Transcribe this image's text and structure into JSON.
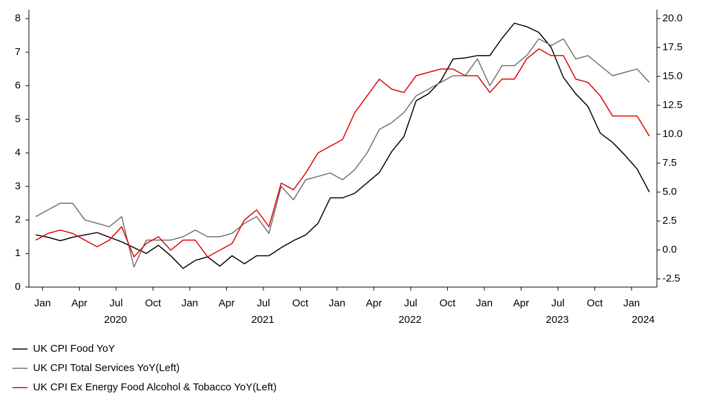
{
  "chart_data": {
    "type": "line",
    "categories": [
      null,
      "Jan",
      null,
      null,
      "Apr",
      null,
      null,
      "Jul",
      null,
      null,
      "Oct",
      null,
      null,
      "Jan",
      null,
      null,
      "Apr",
      null,
      null,
      "Jul",
      null,
      null,
      "Oct",
      null,
      null,
      "Jan",
      null,
      null,
      "Apr",
      null,
      null,
      "Jul",
      null,
      null,
      "Oct",
      null,
      null,
      "Jan",
      null,
      null,
      "Apr",
      null,
      null,
      "Jul",
      null,
      null,
      "Oct",
      null,
      null,
      "Jan",
      null
    ],
    "years": [
      "2020",
      "2021",
      "2022",
      "2023",
      "2024"
    ],
    "series": [
      {
        "name": "UK CPI Food YoY",
        "color": "#000000",
        "axis": "y2",
        "values": [
          1.3,
          1.1,
          0.8,
          1.1,
          1.3,
          1.5,
          1.1,
          0.7,
          0.2,
          -0.3,
          0.4,
          -0.5,
          -1.6,
          -0.9,
          -0.6,
          -1.4,
          -0.5,
          -1.2,
          -0.5,
          -0.5,
          0.2,
          0.8,
          1.3,
          2.3,
          4.5,
          4.5,
          4.9,
          5.8,
          6.7,
          8.5,
          9.8,
          12.9,
          13.5,
          14.6,
          16.5,
          16.6,
          16.8,
          16.8,
          18.3,
          19.6,
          19.3,
          18.8,
          17.5,
          14.9,
          13.5,
          12.4,
          10.1,
          9.3,
          8.2,
          7.0,
          5.0
        ]
      },
      {
        "name": "UK CPI Total Services YoY(Left)",
        "color": "#707070",
        "values": [
          2.1,
          2.3,
          2.5,
          2.5,
          2.0,
          1.9,
          1.8,
          2.1,
          0.6,
          1.4,
          1.4,
          1.4,
          1.5,
          1.7,
          1.5,
          1.5,
          1.6,
          1.9,
          2.1,
          1.6,
          3.0,
          2.6,
          3.2,
          3.3,
          3.4,
          3.2,
          3.5,
          4.0,
          4.7,
          4.9,
          5.2,
          5.7,
          5.9,
          6.1,
          6.3,
          6.3,
          6.8,
          6.0,
          6.6,
          6.6,
          6.9,
          7.4,
          7.2,
          7.4,
          6.8,
          6.9,
          6.6,
          6.3,
          6.4,
          6.5,
          6.1
        ]
      },
      {
        "name": "UK CPI Ex Energy Food Alcohol & Tobacco YoY(Left)",
        "color": "#e00000",
        "values": [
          1.4,
          1.6,
          1.7,
          1.6,
          1.4,
          1.2,
          1.4,
          1.8,
          0.9,
          1.3,
          1.5,
          1.1,
          1.4,
          1.4,
          0.9,
          1.1,
          1.3,
          2.0,
          2.3,
          1.8,
          3.1,
          2.9,
          3.4,
          4.0,
          4.2,
          4.4,
          5.2,
          5.7,
          6.2,
          5.9,
          5.8,
          6.3,
          6.4,
          6.5,
          6.5,
          6.3,
          6.3,
          5.8,
          6.2,
          6.2,
          6.8,
          7.1,
          6.9,
          6.9,
          6.2,
          6.1,
          5.7,
          5.1,
          5.1,
          5.1,
          4.5
        ]
      }
    ],
    "ylim": [
      0,
      8.27
    ],
    "yticks": [
      0,
      1,
      2,
      3,
      4,
      5,
      6,
      7,
      8
    ],
    "y2lim": [
      -3.21,
      20.77
    ],
    "y2ticks": [
      -2.5,
      {
        "value": 0,
        "label": "0.0"
      },
      2.5,
      {
        "value": 5,
        "label": "5.0"
      },
      7.5,
      {
        "value": 10,
        "label": "10.0"
      },
      12.5,
      {
        "value": 15,
        "label": "15.0"
      },
      17.5,
      {
        "value": 20,
        "label": "20.0"
      }
    ],
    "legend": "bottom-left"
  }
}
